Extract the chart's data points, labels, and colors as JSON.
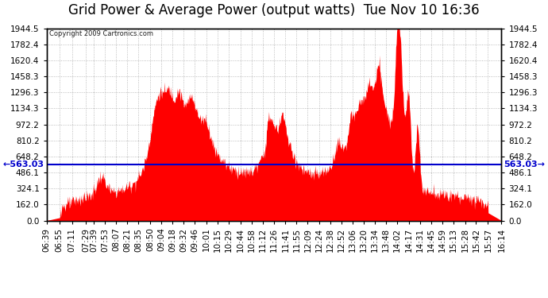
{
  "title": "Grid Power & Average Power (output watts)  Tue Nov 10 16:36",
  "copyright": "Copyright 2009 Cartronics.com",
  "average_power": 563.03,
  "ymin": 0.0,
  "ymax": 1944.5,
  "yticks": [
    0.0,
    162.0,
    324.1,
    486.1,
    648.2,
    810.2,
    972.2,
    1134.3,
    1296.3,
    1458.3,
    1620.4,
    1782.4,
    1944.5
  ],
  "ytick_labels": [
    "0.0",
    "162.0",
    "324.1",
    "486.1",
    "648.2",
    "810.2",
    "972.2",
    "1134.3",
    "1296.3",
    "1458.3",
    "1620.4",
    "1782.4",
    "1944.5"
  ],
  "xtick_labels": [
    "06:39",
    "06:55",
    "07:11",
    "07:29",
    "07:39",
    "07:53",
    "08:07",
    "08:21",
    "08:35",
    "08:50",
    "09:04",
    "09:18",
    "09:32",
    "09:46",
    "10:01",
    "10:15",
    "10:29",
    "10:44",
    "10:58",
    "11:12",
    "11:26",
    "11:41",
    "11:55",
    "12:09",
    "12:24",
    "12:38",
    "12:52",
    "13:06",
    "13:20",
    "13:34",
    "13:48",
    "14:02",
    "14:17",
    "14:31",
    "14:45",
    "14:59",
    "15:13",
    "15:28",
    "15:42",
    "15:57",
    "16:14"
  ],
  "area_color": "#ff0000",
  "avg_line_color": "#0000cc",
  "background_color": "#ffffff",
  "grid_color": "#888888",
  "title_fontsize": 12,
  "tick_fontsize": 7.5,
  "avg_label_color": "#0000cc",
  "avg_label_fontsize": 8
}
